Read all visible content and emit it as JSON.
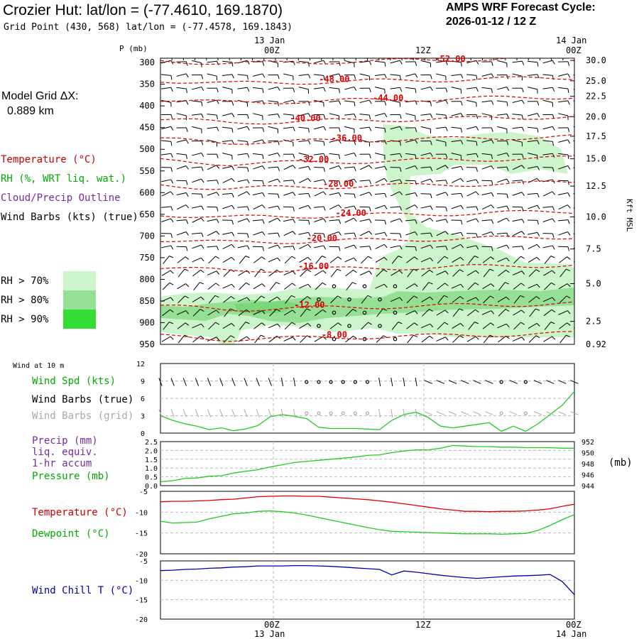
{
  "header": {
    "title": "Crozier Hut:  lat/lon = (-77.4610, 169.1870)",
    "subtitle": "Grid Point (430, 568) lat/lon = (-77.4578, 169.1843)",
    "cycle_line1": "AMPS WRF Forecast Cycle:",
    "cycle_line2": "2026-01-12 / 12  Z"
  },
  "time_axis": {
    "top_labels": [
      {
        "date": "13 Jan",
        "hour": "00Z"
      },
      {
        "date": "",
        "hour": "12Z"
      },
      {
        "date": "14 Jan",
        "hour": "00Z"
      }
    ],
    "bottom_labels": [
      {
        "hour": "00Z",
        "date": "13 Jan"
      },
      {
        "hour": "12Z",
        "date": ""
      },
      {
        "hour": "00Z",
        "date": "14 Jan"
      }
    ]
  },
  "left_panel": {
    "grid_label": "Model Grid ΔX:",
    "grid_value": "0.889 km",
    "legend": [
      {
        "text": "Temperature (°C)",
        "color": "#cc0000"
      },
      {
        "text": "RH (%, WRT liq. wat.)",
        "color": "#00aa00"
      },
      {
        "text": "Cloud/Precip Outline",
        "color": "#7a2aa0"
      },
      {
        "text": "Wind Barbs (kts) (true)",
        "color": "#000000"
      }
    ],
    "rh_legend": [
      {
        "text": "RH > 70%",
        "color": "#ccf5cc"
      },
      {
        "text": "RH > 80%",
        "color": "#96e096"
      },
      {
        "text": "RH > 90%",
        "color": "#33dd33"
      }
    ]
  },
  "colors": {
    "temperature": "#dd0000",
    "green": "#22cc22",
    "wind_chill": "#0000aa",
    "grey": "#999999"
  },
  "chart_data": [
    {
      "type": "heatmap",
      "title": "",
      "ylabel": "P (mb)",
      "y2label": "Kft MSL",
      "pressure_levels": [
        300,
        350,
        400,
        450,
        500,
        550,
        600,
        650,
        700,
        750,
        800,
        850,
        900,
        950
      ],
      "pressure_ticks": [
        "300",
        "350",
        "400",
        "450",
        "500",
        "550",
        "600",
        "650",
        "700",
        "750",
        "800",
        "850",
        "900",
        "950"
      ],
      "height_ticks": [
        {
          "p": 295,
          "label": "30.0"
        },
        {
          "p": 342,
          "label": "25.0"
        },
        {
          "p": 378,
          "label": "22.5"
        },
        {
          "p": 425,
          "label": "20.0"
        },
        {
          "p": 470,
          "label": "17.5"
        },
        {
          "p": 522,
          "label": "15.0"
        },
        {
          "p": 585,
          "label": "12.5"
        },
        {
          "p": 656,
          "label": "10.0"
        },
        {
          "p": 730,
          "label": "7.5"
        },
        {
          "p": 810,
          "label": "5.0"
        },
        {
          "p": 897,
          "label": "2.5"
        },
        {
          "p": 950,
          "label": "0.92"
        }
      ],
      "isotherms": [
        {
          "label": "-52.00",
          "t": 0.7,
          "p": 292
        },
        {
          "label": "-48.00",
          "t": 0.42,
          "p": 338
        },
        {
          "label": "-44.00",
          "t": 0.55,
          "p": 382
        },
        {
          "label": "-40.00",
          "t": 0.35,
          "p": 428
        },
        {
          "label": "-36.00",
          "t": 0.45,
          "p": 474
        },
        {
          "label": "-32.00",
          "t": 0.37,
          "p": 523
        },
        {
          "label": "-28.00",
          "t": 0.43,
          "p": 580
        },
        {
          "label": "-24.00",
          "t": 0.46,
          "p": 647
        },
        {
          "label": "-20.00",
          "t": 0.39,
          "p": 705
        },
        {
          "label": "-16.00",
          "t": 0.37,
          "p": 770
        },
        {
          "label": "-12.00",
          "t": 0.36,
          "p": 859
        },
        {
          "label": "-8.00",
          "t": 0.42,
          "p": 928
        }
      ]
    },
    {
      "type": "line",
      "title": "Wind at 10 m",
      "legend": [
        {
          "text": "Wind Spd (kts)",
          "color": "#00aa00"
        },
        {
          "text": "Wind Barbs (true)",
          "color": "#000000"
        },
        {
          "text": "Wind Barbs (grid)",
          "color": "#aaaaaa"
        }
      ],
      "yticks": [
        "12",
        "9",
        "6",
        "3",
        "0"
      ],
      "ylim": [
        0,
        12
      ],
      "series": [
        {
          "values": [
            3.0,
            2.2,
            1.6,
            1.2,
            0.6,
            0.9,
            0.4,
            0.7,
            1.3,
            2.8,
            3.2,
            2.9,
            2.5,
            1.0,
            0.8,
            0.8,
            0.8,
            0.7,
            0.6,
            2.2,
            3.2,
            3.6,
            2.7,
            1.2,
            0.9,
            1.2,
            1.5,
            1.8,
            0.3,
            1.2,
            0.3,
            1.6,
            3.2,
            4.8,
            7.2
          ]
        }
      ]
    },
    {
      "type": "line",
      "legend": [
        {
          "text": "Precip (mm)",
          "color": "#7a2aa0"
        },
        {
          "text": "liq. equiv.",
          "color": "#7a2aa0"
        },
        {
          "text": "1-hr accum",
          "color": "#7a2aa0"
        },
        {
          "text": "Pressure (mb)",
          "color": "#00aa00"
        }
      ],
      "yticks_left": [
        "2.5",
        "2.0",
        "1.5",
        "1.0",
        "0.5",
        "0.0"
      ],
      "yticks_right": [
        "952",
        "950",
        "948",
        "946",
        "944"
      ],
      "y2label": "(mb)",
      "ylim_right": [
        944,
        952
      ],
      "series": [
        {
          "values": [
            944.7,
            944.9,
            945.3,
            945.4,
            945.7,
            945.8,
            946.3,
            946.6,
            946.9,
            947.4,
            947.8,
            948.2,
            948.4,
            948.6,
            948.8,
            949.0,
            949.2,
            949.5,
            949.6,
            950.0,
            950.3,
            950.5,
            950.5,
            950.8,
            951.3,
            951.2,
            951.1,
            951.1,
            951.0,
            951.0,
            950.9,
            950.9,
            950.9,
            950.8,
            950.8
          ]
        }
      ]
    },
    {
      "type": "line",
      "legend": [
        {
          "text": "Temperature (°C)",
          "color": "#cc0000"
        },
        {
          "text": "Dewpoint (°C)",
          "color": "#00aa00"
        }
      ],
      "yticks": [
        "-5",
        "-10",
        "-15",
        "-20"
      ],
      "ylim": [
        -20,
        -5
      ],
      "series": [
        {
          "name": "Temperature (°C)",
          "values": [
            -7.5,
            -7.4,
            -7.4,
            -7.3,
            -7.2,
            -7.0,
            -6.9,
            -6.6,
            -6.3,
            -6.2,
            -6.1,
            -6.1,
            -6.2,
            -6.2,
            -6.4,
            -6.6,
            -6.8,
            -7.0,
            -7.3,
            -7.6,
            -8.0,
            -8.4,
            -8.8,
            -9.2,
            -9.5,
            -9.8,
            -9.8,
            -9.9,
            -9.8,
            -9.8,
            -9.7,
            -9.5,
            -9.2,
            -8.6,
            -8.1
          ]
        },
        {
          "name": "Dewpoint (°C)",
          "values": [
            -12.2,
            -12.6,
            -12.5,
            -12.4,
            -11.6,
            -11.0,
            -10.4,
            -10.2,
            -9.8,
            -9.7,
            -9.9,
            -10.2,
            -10.7,
            -11.3,
            -11.9,
            -12.5,
            -13.1,
            -13.7,
            -14.2,
            -14.6,
            -14.7,
            -14.8,
            -14.9,
            -15.0,
            -15.1,
            -15.2,
            -15.2,
            -15.2,
            -15.3,
            -15.2,
            -15.1,
            -14.4,
            -13.2,
            -11.8,
            -10.6
          ]
        }
      ]
    },
    {
      "type": "line",
      "legend": [
        {
          "text": "Wind Chill T (°C)",
          "color": "#0000aa"
        }
      ],
      "yticks": [
        "-5",
        "-10",
        "-15",
        "-20"
      ],
      "ylim": [
        -20,
        -5
      ],
      "series": [
        {
          "name": "Wind Chill T (°C)",
          "values": [
            -7.5,
            -7.4,
            -7.2,
            -7.1,
            -6.9,
            -6.8,
            -6.6,
            -6.5,
            -6.3,
            -6.3,
            -6.3,
            -6.2,
            -6.2,
            -6.3,
            -6.4,
            -6.6,
            -6.8,
            -7.0,
            -7.2,
            -8.6,
            -7.6,
            -7.9,
            -8.3,
            -8.7,
            -9.0,
            -9.3,
            -9.5,
            -9.3,
            -9.1,
            -8.9,
            -8.8,
            -8.7,
            -8.5,
            -10.3,
            -13.7
          ]
        }
      ]
    }
  ]
}
